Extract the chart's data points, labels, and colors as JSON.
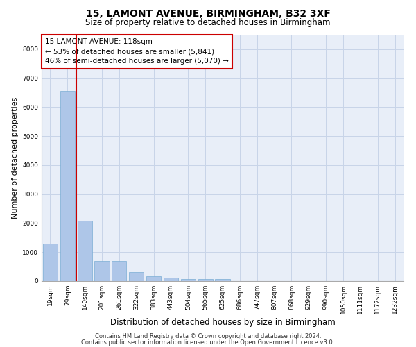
{
  "title": "15, LAMONT AVENUE, BIRMINGHAM, B32 3XF",
  "subtitle": "Size of property relative to detached houses in Birmingham",
  "xlabel": "Distribution of detached houses by size in Birmingham",
  "ylabel": "Number of detached properties",
  "categories": [
    "19sqm",
    "79sqm",
    "140sqm",
    "201sqm",
    "261sqm",
    "322sqm",
    "383sqm",
    "443sqm",
    "504sqm",
    "565sqm",
    "625sqm",
    "686sqm",
    "747sqm",
    "807sqm",
    "868sqm",
    "929sqm",
    "990sqm",
    "1050sqm",
    "1111sqm",
    "1172sqm",
    "1232sqm"
  ],
  "values": [
    1300,
    6550,
    2080,
    700,
    700,
    300,
    160,
    110,
    70,
    60,
    60,
    0,
    0,
    0,
    0,
    0,
    0,
    0,
    0,
    0,
    0
  ],
  "bar_color": "#aec6e8",
  "bar_edge_color": "#7aadd4",
  "vline_x": 1.5,
  "vline_color": "#cc0000",
  "annotation_text": "15 LAMONT AVENUE: 118sqm\n← 53% of detached houses are smaller (5,841)\n46% of semi-detached houses are larger (5,070) →",
  "annotation_box_color": "#ffffff",
  "annotation_box_edge": "#cc0000",
  "ylim": [
    0,
    8500
  ],
  "yticks": [
    0,
    1000,
    2000,
    3000,
    4000,
    5000,
    6000,
    7000,
    8000
  ],
  "grid_color": "#c8d4e8",
  "bg_color": "#e8eef8",
  "footer1": "Contains HM Land Registry data © Crown copyright and database right 2024.",
  "footer2": "Contains public sector information licensed under the Open Government Licence v3.0.",
  "title_fontsize": 10,
  "subtitle_fontsize": 8.5,
  "tick_fontsize": 6.5,
  "ylabel_fontsize": 8,
  "xlabel_fontsize": 8.5,
  "footer_fontsize": 6,
  "annotation_fontsize": 7.5
}
